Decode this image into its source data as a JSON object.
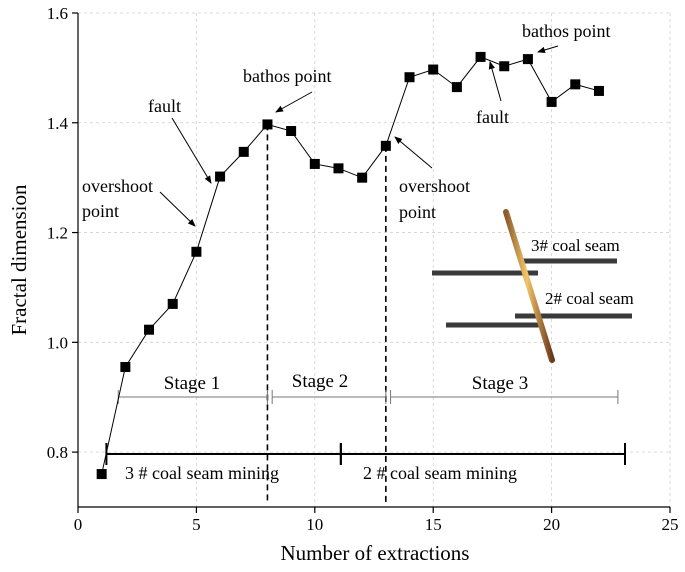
{
  "chart_data": {
    "type": "line",
    "xlabel": "Number of extractions",
    "ylabel": "Fractal dimension",
    "xlim": [
      0,
      25
    ],
    "ylim": [
      0.7,
      1.6
    ],
    "x_ticks": [
      0,
      5,
      10,
      15,
      20,
      25
    ],
    "y_ticks": [
      0.8,
      1.0,
      1.2,
      1.4,
      1.6
    ],
    "grid": true,
    "series": [
      {
        "name": "Fractal dimension",
        "marker": "square",
        "x": [
          1,
          2,
          3,
          4,
          5,
          6,
          7,
          8,
          9,
          10,
          11,
          12,
          13,
          14,
          15,
          16,
          17,
          18,
          19,
          20,
          21,
          22
        ],
        "y": [
          0.76,
          0.955,
          1.023,
          1.07,
          1.165,
          1.302,
          1.347,
          1.397,
          1.385,
          1.325,
          1.317,
          1.3,
          1.358,
          1.483,
          1.497,
          1.465,
          1.52,
          1.503,
          1.516,
          1.438,
          1.47,
          1.458
        ]
      }
    ],
    "vertical_lines": [
      8,
      13
    ],
    "stages": [
      {
        "label": "Stage 1",
        "x_start": 1.7,
        "x_end": 8
      },
      {
        "label": "Stage 2",
        "x_start": 8.2,
        "x_end": 13
      },
      {
        "label": "Stage 3",
        "x_start": 13.2,
        "x_end": 22.8
      }
    ],
    "mining_periods": [
      {
        "label": "3 # coal seam mining",
        "x_start": 1.2,
        "x_end": 11.1
      },
      {
        "label": "2 # coal seam mining",
        "x_start": 11.1,
        "x_end": 23.1
      }
    ],
    "annotations": [
      {
        "text": "fault",
        "target_x": 5.5,
        "target_y": 1.27
      },
      {
        "text": "overshoot point",
        "target_x": 5,
        "target_y": 1.18
      },
      {
        "text": "bathos point",
        "target_x": 8.3,
        "target_y": 1.402
      },
      {
        "text": "overshoot point",
        "target_x": 13.2,
        "target_y": 1.348
      },
      {
        "text": "fault",
        "target_x": 19,
        "target_y": 1.5
      },
      {
        "text": "bathos point",
        "target_x": 19.4,
        "target_y": 1.522
      }
    ],
    "inset_labels": [
      "3# coal seam",
      "2# coal seam"
    ]
  }
}
